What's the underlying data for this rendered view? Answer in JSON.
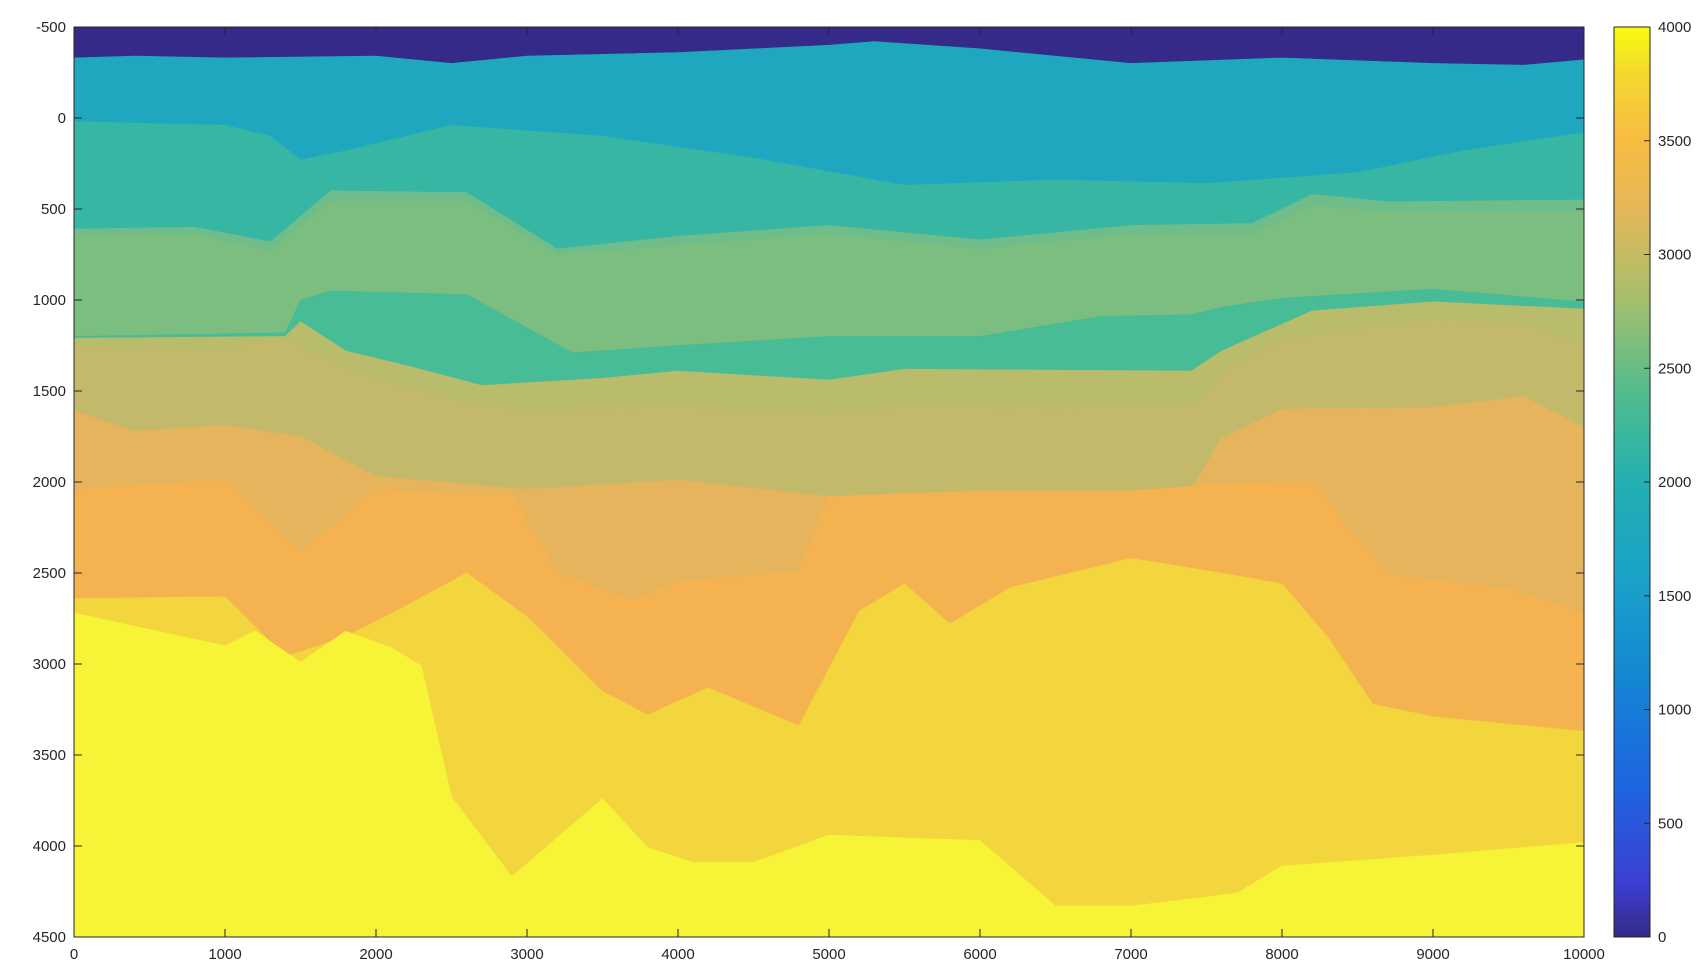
{
  "chart_data": {
    "type": "heatmap",
    "xlim": [
      0,
      10000
    ],
    "ylim": [
      -500,
      4500
    ],
    "y_reversed": true,
    "x_ticks": [
      0,
      1000,
      2000,
      3000,
      4000,
      5000,
      6000,
      7000,
      8000,
      9000,
      10000
    ],
    "y_ticks": [
      -500,
      0,
      500,
      1000,
      1500,
      2000,
      2500,
      3000,
      3500,
      4000,
      4500
    ],
    "colorbar": {
      "colormap": "parula",
      "clim": [
        0,
        4000
      ],
      "ticks": [
        0,
        500,
        1000,
        1500,
        2000,
        2500,
        3000,
        3500,
        4000
      ]
    },
    "grid": false,
    "legend": "none",
    "layers": [
      {
        "value": 200,
        "color": "#352a87",
        "top": [
          [
            0,
            -500
          ],
          [
            10000,
            -500
          ]
        ]
      },
      {
        "value": 1500,
        "color": "#1fa7c0",
        "top": [
          [
            0,
            -330
          ],
          [
            400,
            -340
          ],
          [
            1000,
            -330
          ],
          [
            2000,
            -340
          ],
          [
            2500,
            -300
          ],
          [
            3000,
            -340
          ],
          [
            4000,
            -360
          ],
          [
            5000,
            -400
          ],
          [
            5300,
            -420
          ],
          [
            6000,
            -380
          ],
          [
            7000,
            -300
          ],
          [
            8000,
            -330
          ],
          [
            9000,
            -300
          ],
          [
            9600,
            -290
          ],
          [
            10000,
            -320
          ]
        ]
      },
      {
        "value": 2000,
        "color": "#36b6a3",
        "top": [
          [
            0,
            20
          ],
          [
            1000,
            40
          ],
          [
            1300,
            100
          ],
          [
            1500,
            230
          ],
          [
            1800,
            180
          ],
          [
            2500,
            40
          ],
          [
            3500,
            100
          ],
          [
            4500,
            220
          ],
          [
            5500,
            370
          ],
          [
            6500,
            340
          ],
          [
            7500,
            360
          ],
          [
            8500,
            300
          ],
          [
            9200,
            180
          ],
          [
            10000,
            80
          ]
        ]
      },
      {
        "value": 2300,
        "color": "#6ebd8a",
        "top": [
          [
            0,
            610
          ],
          [
            800,
            600
          ],
          [
            1300,
            680
          ],
          [
            1700,
            400
          ],
          [
            2600,
            410
          ],
          [
            3200,
            720
          ],
          [
            4000,
            650
          ],
          [
            5000,
            590
          ],
          [
            6000,
            670
          ],
          [
            7000,
            590
          ],
          [
            7800,
            580
          ],
          [
            8200,
            420
          ],
          [
            8700,
            460
          ],
          [
            10000,
            450
          ]
        ]
      },
      {
        "value": 2500,
        "color": "#7cbe7f",
        "top": [
          [
            0,
            640
          ],
          [
            800,
            640
          ],
          [
            1300,
            730
          ],
          [
            1700,
            460
          ],
          [
            2600,
            460
          ],
          [
            3200,
            750
          ],
          [
            4000,
            700
          ],
          [
            5000,
            640
          ],
          [
            6000,
            720
          ],
          [
            7000,
            640
          ],
          [
            7800,
            640
          ],
          [
            8200,
            480
          ],
          [
            8700,
            520
          ],
          [
            10000,
            520
          ]
        ]
      },
      {
        "value": 2100,
        "color": "#48bb97",
        "top": [
          [
            0,
            1200
          ],
          [
            1400,
            1180
          ],
          [
            1500,
            1000
          ],
          [
            1700,
            950
          ],
          [
            2600,
            970
          ],
          [
            3300,
            1290
          ],
          [
            4000,
            1250
          ],
          [
            5000,
            1200
          ],
          [
            6000,
            1200
          ],
          [
            6800,
            1090
          ],
          [
            7400,
            1080
          ],
          [
            7600,
            1040
          ],
          [
            8000,
            990
          ],
          [
            9000,
            940
          ],
          [
            10000,
            1010
          ]
        ]
      },
      {
        "value": 2700,
        "color": "#b9bd6b",
        "top": [
          [
            0,
            1210
          ],
          [
            1400,
            1200
          ],
          [
            1500,
            1120
          ],
          [
            1800,
            1280
          ],
          [
            2200,
            1360
          ],
          [
            2700,
            1470
          ],
          [
            3500,
            1430
          ],
          [
            4000,
            1390
          ],
          [
            5000,
            1440
          ],
          [
            5500,
            1380
          ],
          [
            7400,
            1390
          ],
          [
            7600,
            1280
          ],
          [
            8200,
            1060
          ],
          [
            9000,
            1010
          ],
          [
            10000,
            1050
          ]
        ]
      },
      {
        "value": 2800,
        "color": "#c2ba6a",
        "top": [
          [
            0,
            1260
          ],
          [
            800,
            1280
          ],
          [
            1400,
            1220
          ],
          [
            1800,
            1380
          ],
          [
            2500,
            1550
          ],
          [
            3000,
            1610
          ],
          [
            4000,
            1590
          ],
          [
            5000,
            1630
          ],
          [
            5500,
            1590
          ],
          [
            6500,
            1600
          ],
          [
            7400,
            1580
          ],
          [
            7600,
            1400
          ],
          [
            8000,
            1220
          ],
          [
            9000,
            1110
          ],
          [
            9600,
            1130
          ],
          [
            10000,
            1260
          ]
        ]
      },
      {
        "value": 3200,
        "color": "#e5b45d",
        "top": [
          [
            0,
            1610
          ],
          [
            400,
            1720
          ],
          [
            1000,
            1690
          ],
          [
            1500,
            1750
          ],
          [
            2000,
            1970
          ],
          [
            3000,
            2040
          ],
          [
            4000,
            1990
          ],
          [
            5000,
            2080
          ],
          [
            5600,
            2060
          ],
          [
            7400,
            2040
          ],
          [
            7600,
            1760
          ],
          [
            8000,
            1600
          ],
          [
            9000,
            1590
          ],
          [
            9600,
            1530
          ],
          [
            10000,
            1700
          ]
        ]
      },
      {
        "value": 3350,
        "color": "#f5b250",
        "top": [
          [
            0,
            2040
          ],
          [
            1000,
            1990
          ],
          [
            1500,
            2380
          ],
          [
            2000,
            2040
          ],
          [
            2500,
            2070
          ],
          [
            2900,
            2070
          ],
          [
            3200,
            2500
          ],
          [
            3700,
            2650
          ],
          [
            4000,
            2550
          ],
          [
            4800,
            2490
          ],
          [
            5000,
            2080
          ],
          [
            6000,
            2050
          ],
          [
            7000,
            2050
          ],
          [
            7600,
            2010
          ],
          [
            8200,
            2000
          ],
          [
            8700,
            2510
          ],
          [
            9500,
            2590
          ],
          [
            10000,
            2720
          ]
        ]
      },
      {
        "value": 3750,
        "color": "#f3d53d",
        "top": [
          [
            0,
            2640
          ],
          [
            1000,
            2630
          ],
          [
            1400,
            2960
          ],
          [
            1800,
            2850
          ],
          [
            2200,
            2680
          ],
          [
            2600,
            2500
          ],
          [
            3000,
            2740
          ],
          [
            3500,
            3150
          ],
          [
            3800,
            3280
          ],
          [
            4200,
            3130
          ],
          [
            4800,
            3340
          ],
          [
            5200,
            2710
          ],
          [
            5500,
            2560
          ],
          [
            5800,
            2780
          ],
          [
            6200,
            2580
          ],
          [
            7000,
            2420
          ],
          [
            7600,
            2500
          ],
          [
            8000,
            2560
          ],
          [
            8300,
            2850
          ],
          [
            8600,
            3220
          ],
          [
            9000,
            3290
          ],
          [
            10000,
            3370
          ]
        ]
      },
      {
        "value": 3950,
        "color": "#f7f437",
        "top": [
          [
            0,
            2720
          ],
          [
            1000,
            2900
          ],
          [
            1200,
            2820
          ],
          [
            1500,
            2990
          ],
          [
            1800,
            2820
          ],
          [
            2100,
            2910
          ],
          [
            2300,
            3010
          ],
          [
            2500,
            3730
          ],
          [
            2900,
            4170
          ],
          [
            3500,
            3740
          ],
          [
            3800,
            4010
          ],
          [
            4100,
            4090
          ],
          [
            4500,
            4090
          ],
          [
            5000,
            3940
          ],
          [
            6000,
            3970
          ],
          [
            6500,
            4330
          ],
          [
            7000,
            4330
          ],
          [
            7700,
            4260
          ],
          [
            8000,
            4110
          ],
          [
            9000,
            4050
          ],
          [
            10000,
            3980
          ]
        ]
      }
    ]
  }
}
